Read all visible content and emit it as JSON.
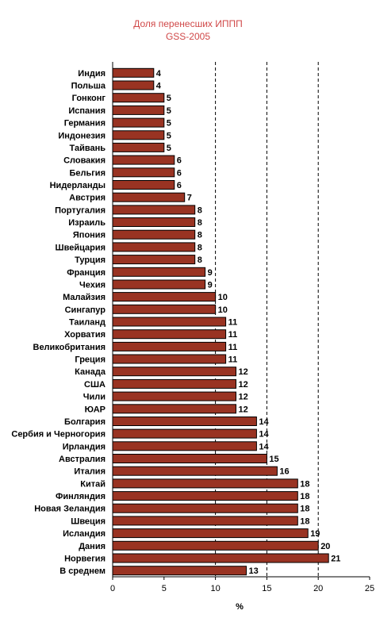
{
  "colors": {
    "bar": "#993322",
    "bar_stroke": "#000000",
    "title": "#d04848",
    "grid": "#000000"
  },
  "chart_data": {
    "type": "bar",
    "orientation": "horizontal",
    "title": "Доля перенесших ИППП",
    "subtitle": "GSS-2005",
    "xlabel": "%",
    "xlim": [
      0,
      25
    ],
    "xticks": [
      0,
      5,
      10,
      15,
      20,
      25
    ],
    "grid": "vertical dashed at 10, 15, 20",
    "categories": [
      "Индия",
      "Польша",
      "Гонконг",
      "Испания",
      "Германия",
      "Индонезия",
      "Тайвань",
      "Словакия",
      "Бельгия",
      "Нидерланды",
      "Австрия",
      "Португалия",
      "Израиль",
      "Япония",
      "Швейцария",
      "Турция",
      "Франция",
      "Чехия",
      "Малайзия",
      "Сингапур",
      "Таиланд",
      "Хорватия",
      "Великобритания",
      "Греция",
      "Канада",
      "США",
      "Чили",
      "ЮАР",
      "Болгария",
      "Сербия и Черногория",
      "Ирландия",
      "Австралия",
      "Италия",
      "Китай",
      "Финляндия",
      "Новая Зеландия",
      "Швеция",
      "Исландия",
      "Дания",
      "Норвегия",
      "В среднем"
    ],
    "values": [
      4,
      4,
      5,
      5,
      5,
      5,
      5,
      6,
      6,
      6,
      7,
      8,
      8,
      8,
      8,
      8,
      9,
      9,
      10,
      10,
      11,
      11,
      11,
      11,
      12,
      12,
      12,
      12,
      14,
      14,
      14,
      15,
      16,
      18,
      18,
      18,
      18,
      19,
      20,
      21,
      13
    ]
  }
}
